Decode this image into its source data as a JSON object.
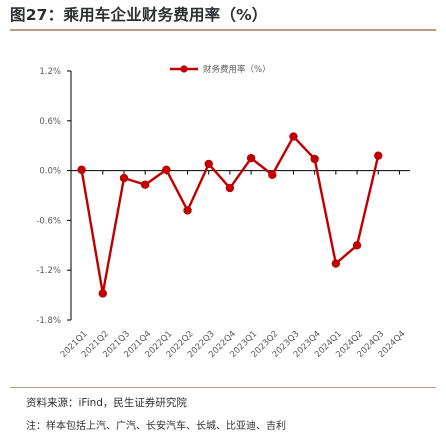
{
  "figure": {
    "title": "图27：乘用车企业财务费用率（%）",
    "source": "资料来源：iFind，民生证券研究院",
    "note": "注：样本包括上汽、广汽、长安汽车、长城、比亚迪、吉利"
  },
  "colors": {
    "series": "#c00000",
    "axis": "#000000",
    "text": "#595959",
    "rule": "#b89a86"
  },
  "chart_data": {
    "type": "line",
    "title": "",
    "xlabel": "",
    "ylabel": "",
    "ylim": [
      -1.8,
      1.2
    ],
    "yticks": [
      1.2,
      0.6,
      0.0,
      -0.6,
      -1.2,
      -1.8
    ],
    "ytick_labels": [
      "1.2%",
      "0.6%",
      "0.0%",
      "-0.6%",
      "-1.2%",
      "-1.8%"
    ],
    "legend_position": "top-center",
    "grid": false,
    "x": [
      "2021Q1",
      "2021Q2",
      "2021Q3",
      "2021Q4",
      "2022Q1",
      "2022Q2",
      "2022Q3",
      "2022Q4",
      "2023Q1",
      "2023Q2",
      "2023Q3",
      "2023Q4",
      "2024Q1",
      "2024Q2",
      "2024Q3",
      "2024Q4"
    ],
    "series": [
      {
        "name": "财务费用率（%）",
        "values": [
          0.01,
          -1.48,
          -0.09,
          -0.17,
          0.01,
          -0.48,
          0.08,
          -0.21,
          0.15,
          -0.05,
          0.41,
          0.14,
          -1.12,
          -0.9,
          0.18,
          null
        ]
      }
    ]
  }
}
